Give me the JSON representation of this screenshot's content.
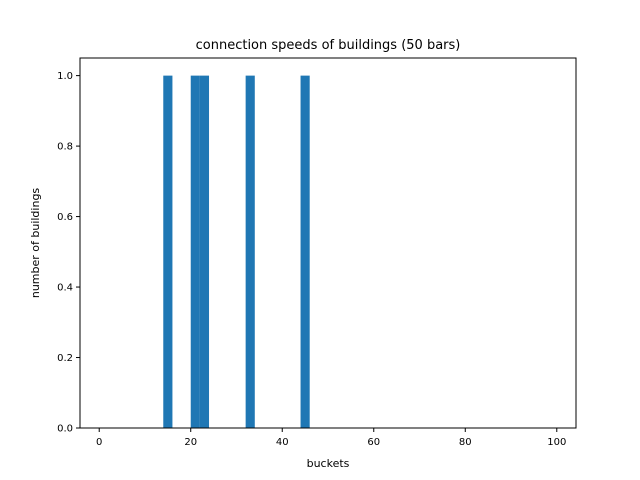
{
  "chart_data": {
    "type": "bar",
    "title": "connection speeds of buildings (50 bars)",
    "xlabel": "buckets",
    "ylabel": "number of buildings",
    "xlim": [
      -4.2,
      104.2
    ],
    "ylim": [
      0,
      1.05
    ],
    "xticks": [
      0,
      20,
      40,
      60,
      80,
      100
    ],
    "yticks": [
      0.0,
      0.2,
      0.4,
      0.6,
      0.8,
      1.0
    ],
    "ytick_labels": [
      "0.0",
      "0.2",
      "0.4",
      "0.6",
      "0.8",
      "1.0"
    ],
    "bin_width": 2,
    "bars": [
      {
        "x0": 14,
        "x1": 16,
        "value": 1
      },
      {
        "x0": 20,
        "x1": 22,
        "value": 1
      },
      {
        "x0": 22,
        "x1": 24,
        "value": 1
      },
      {
        "x0": 32,
        "x1": 34,
        "value": 1
      },
      {
        "x0": 44,
        "x1": 46,
        "value": 1
      }
    ],
    "bar_color": "#1f77b4",
    "grid": false,
    "legend": "none"
  }
}
